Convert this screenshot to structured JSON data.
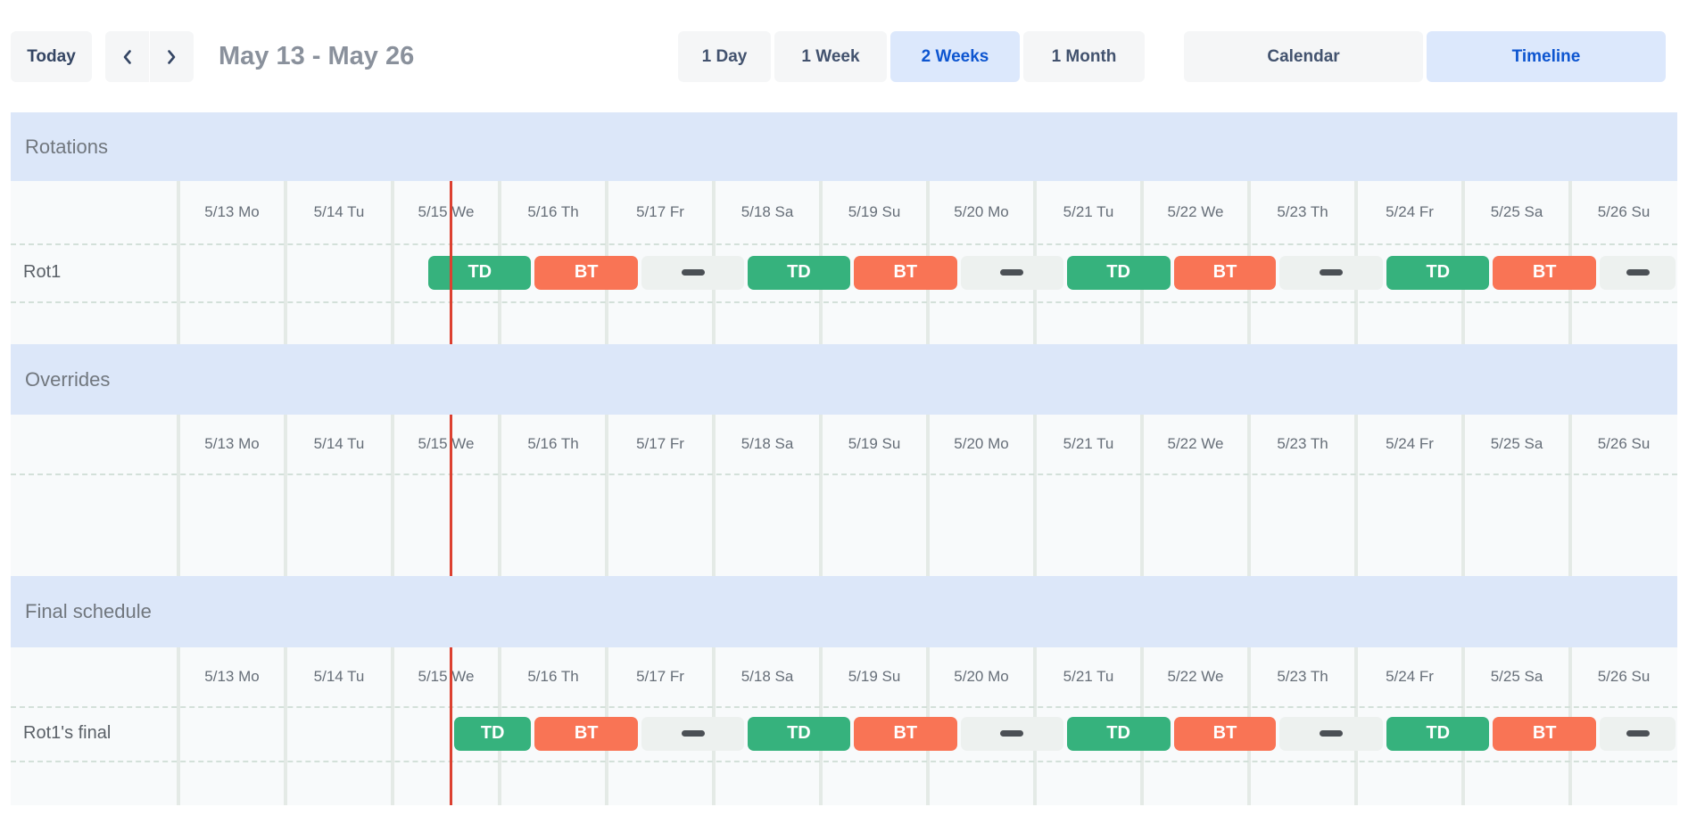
{
  "toolbar": {
    "today": "Today",
    "prev_icon": "chevron-left-icon",
    "next_icon": "chevron-right-icon",
    "date_range": "May 13 - May 26",
    "view_options": [
      {
        "label": "1 Day",
        "selected": false
      },
      {
        "label": "1 Week",
        "selected": false
      },
      {
        "label": "2 Weeks",
        "selected": true
      },
      {
        "label": "1 Month",
        "selected": false
      }
    ],
    "mode_options": [
      {
        "label": "Calendar",
        "selected": false
      },
      {
        "label": "Timeline",
        "selected": true
      }
    ]
  },
  "schedule": {
    "days": [
      "5/13 Mo",
      "5/14 Tu",
      "5/15 We",
      "5/16 Th",
      "5/17 Fr",
      "5/18 Sa",
      "5/19 Su",
      "5/20 Mo",
      "5/21 Tu",
      "5/22 We",
      "5/23 Th",
      "5/24 Fr",
      "5/25 Sa",
      "5/26 Su"
    ],
    "now_marker_day": 2.54,
    "sections": [
      {
        "title": "Rotations",
        "rows": [
          {
            "label": "Rot1",
            "segments": [
              {
                "type": "TD",
                "label": "TD",
                "start_day": 2.32,
                "end_day": 3.31
              },
              {
                "type": "BT",
                "label": "BT",
                "start_day": 3.31,
                "end_day": 4.31
              },
              {
                "type": "OFF",
                "label": "",
                "start_day": 4.31,
                "end_day": 5.3
              },
              {
                "type": "TD",
                "label": "TD",
                "start_day": 5.3,
                "end_day": 6.29
              },
              {
                "type": "BT",
                "label": "BT",
                "start_day": 6.29,
                "end_day": 7.29
              },
              {
                "type": "OFF",
                "label": "",
                "start_day": 7.29,
                "end_day": 8.28
              },
              {
                "type": "TD",
                "label": "TD",
                "start_day": 8.28,
                "end_day": 9.28
              },
              {
                "type": "BT",
                "label": "BT",
                "start_day": 9.28,
                "end_day": 10.27
              },
              {
                "type": "OFF",
                "label": "",
                "start_day": 10.27,
                "end_day": 11.27
              },
              {
                "type": "TD",
                "label": "TD",
                "start_day": 11.27,
                "end_day": 12.26
              },
              {
                "type": "BT",
                "label": "BT",
                "start_day": 12.26,
                "end_day": 13.26
              },
              {
                "type": "OFF",
                "label": "",
                "start_day": 13.26,
                "end_day": 14.0
              }
            ]
          }
        ]
      },
      {
        "title": "Overrides",
        "rows": []
      },
      {
        "title": "Final schedule",
        "rows": [
          {
            "label": "Rot1's final",
            "segments": [
              {
                "type": "TD",
                "label": "TD",
                "start_day": 2.56,
                "end_day": 3.31
              },
              {
                "type": "BT",
                "label": "BT",
                "start_day": 3.31,
                "end_day": 4.31
              },
              {
                "type": "OFF",
                "label": "",
                "start_day": 4.31,
                "end_day": 5.3
              },
              {
                "type": "TD",
                "label": "TD",
                "start_day": 5.3,
                "end_day": 6.29
              },
              {
                "type": "BT",
                "label": "BT",
                "start_day": 6.29,
                "end_day": 7.29
              },
              {
                "type": "OFF",
                "label": "",
                "start_day": 7.29,
                "end_day": 8.28
              },
              {
                "type": "TD",
                "label": "TD",
                "start_day": 8.28,
                "end_day": 9.28
              },
              {
                "type": "BT",
                "label": "BT",
                "start_day": 9.28,
                "end_day": 10.27
              },
              {
                "type": "OFF",
                "label": "",
                "start_day": 10.27,
                "end_day": 11.27
              },
              {
                "type": "TD",
                "label": "TD",
                "start_day": 11.27,
                "end_day": 12.26
              },
              {
                "type": "BT",
                "label": "BT",
                "start_day": 12.26,
                "end_day": 13.26
              },
              {
                "type": "OFF",
                "label": "",
                "start_day": 13.26,
                "end_day": 14.0
              }
            ]
          }
        ]
      }
    ],
    "colors": {
      "TD": "#36b27d",
      "BT": "#f97455",
      "OFF": "#edf1ef",
      "off_dash": "#4b5055",
      "now_line": "#dc4030",
      "section_header_bg": "#dce7f9",
      "selected_button_bg": "#dce8fc",
      "selected_button_text": "#0d55d0",
      "grid_bg": "#f8fafb"
    }
  }
}
